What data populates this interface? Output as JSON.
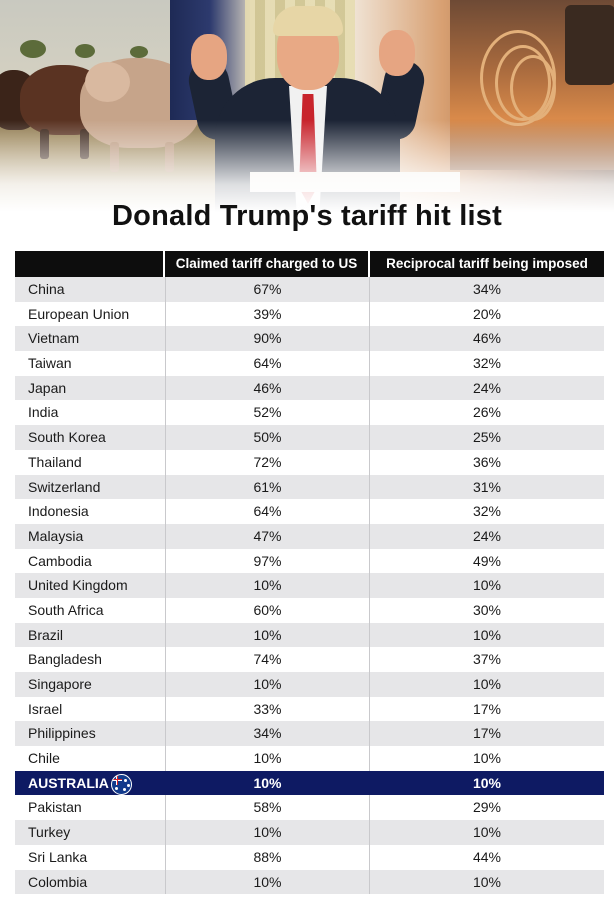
{
  "title": "Donald Trump's tariff hit list",
  "table": {
    "headers": [
      "",
      "Claimed tariff charged to US",
      "Reciprocal tariff being imposed"
    ],
    "rows": [
      {
        "country": "China",
        "claimed": "67%",
        "reciprocal": "34%"
      },
      {
        "country": "European Union",
        "claimed": "39%",
        "reciprocal": "20%"
      },
      {
        "country": "Vietnam",
        "claimed": "90%",
        "reciprocal": "46%"
      },
      {
        "country": "Taiwan",
        "claimed": "64%",
        "reciprocal": "32%"
      },
      {
        "country": "Japan",
        "claimed": "46%",
        "reciprocal": "24%"
      },
      {
        "country": "India",
        "claimed": "52%",
        "reciprocal": "26%"
      },
      {
        "country": "South Korea",
        "claimed": "50%",
        "reciprocal": "25%"
      },
      {
        "country": "Thailand",
        "claimed": "72%",
        "reciprocal": "36%"
      },
      {
        "country": "Switzerland",
        "claimed": "61%",
        "reciprocal": "31%"
      },
      {
        "country": "Indonesia",
        "claimed": "64%",
        "reciprocal": "32%"
      },
      {
        "country": "Malaysia",
        "claimed": "47%",
        "reciprocal": "24%"
      },
      {
        "country": "Cambodia",
        "claimed": "97%",
        "reciprocal": "49%"
      },
      {
        "country": "United Kingdom",
        "claimed": "10%",
        "reciprocal": "10%"
      },
      {
        "country": "South Africa",
        "claimed": "60%",
        "reciprocal": "30%"
      },
      {
        "country": "Brazil",
        "claimed": "10%",
        "reciprocal": "10%"
      },
      {
        "country": "Bangladesh",
        "claimed": "74%",
        "reciprocal": "37%"
      },
      {
        "country": "Singapore",
        "claimed": "10%",
        "reciprocal": "10%"
      },
      {
        "country": "Israel",
        "claimed": "33%",
        "reciprocal": "17%"
      },
      {
        "country": "Philippines",
        "claimed": "34%",
        "reciprocal": "17%"
      },
      {
        "country": "Chile",
        "claimed": "10%",
        "reciprocal": "10%"
      },
      {
        "country": "AUSTRALIA",
        "claimed": "10%",
        "reciprocal": "10%",
        "highlight": true,
        "flag": "australia-flag-icon"
      },
      {
        "country": "Pakistan",
        "claimed": "58%",
        "reciprocal": "29%"
      },
      {
        "country": "Turkey",
        "claimed": "10%",
        "reciprocal": "10%"
      },
      {
        "country": "Sri Lanka",
        "claimed": "88%",
        "reciprocal": "44%"
      },
      {
        "country": "Colombia",
        "claimed": "10%",
        "reciprocal": "10%"
      }
    ]
  },
  "colors": {
    "header_bg": "#0d0d0d",
    "stripe_bg": "#e6e6e8",
    "highlight_bg": "#0e1a63"
  },
  "hero_image": "photo-collage-cattle-trump-factory"
}
